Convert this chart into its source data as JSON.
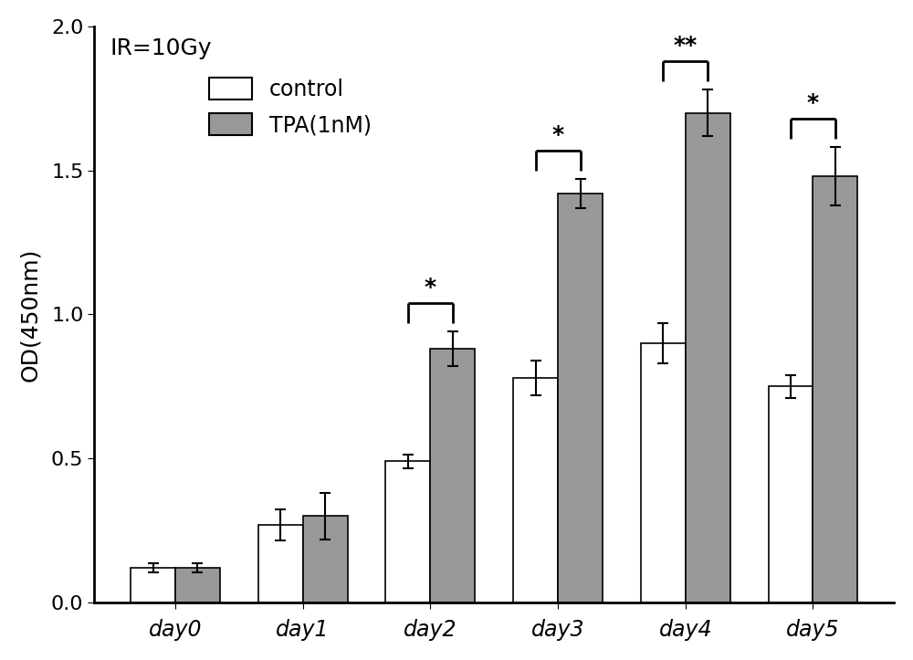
{
  "categories": [
    "day0",
    "day1",
    "day2",
    "day3",
    "day4",
    "day5"
  ],
  "control_values": [
    0.12,
    0.27,
    0.49,
    0.78,
    0.9,
    0.75
  ],
  "control_errors": [
    0.015,
    0.055,
    0.025,
    0.06,
    0.07,
    0.04
  ],
  "tpa_values": [
    0.12,
    0.3,
    0.88,
    1.42,
    1.7,
    1.48
  ],
  "tpa_errors": [
    0.015,
    0.08,
    0.06,
    0.05,
    0.08,
    0.1
  ],
  "control_color": "#ffffff",
  "control_edgecolor": "#000000",
  "tpa_color": "#999999",
  "tpa_edgecolor": "#000000",
  "ylabel": "OD(450nm)",
  "ylim": [
    0.0,
    2.0
  ],
  "yticks": [
    0.0,
    0.5,
    1.0,
    1.5,
    2.0
  ],
  "title": "IR=10Gy",
  "legend_labels": [
    "control",
    "TPA(1nM)"
  ],
  "significance_days_idx": [
    2,
    3,
    4,
    5
  ],
  "significance_labels": [
    "*",
    "*",
    "**",
    "*"
  ],
  "bar_width": 0.35,
  "background_color": "#ffffff"
}
